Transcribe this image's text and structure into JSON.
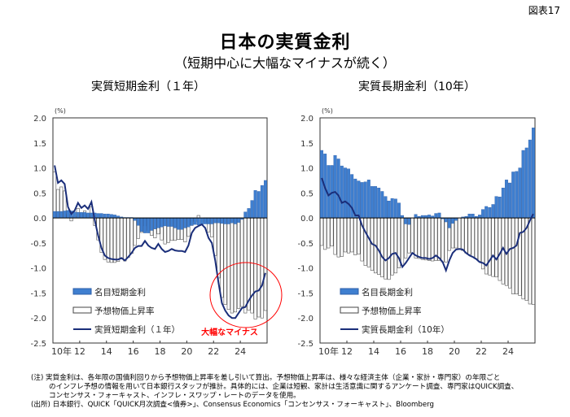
{
  "figure_number": "図表17",
  "title": "日本の実質金利",
  "subtitle": "（短期中心に大幅なマイナスが続く）",
  "colors": {
    "nominal": "#3f7fd0",
    "expected": "#ffffff",
    "real": "#1a2e7a",
    "annotation": "#ff0000"
  },
  "notes": [
    "(注) 実質金利は、各年限の国債利回りから予想物価上昇率を差し引いて算出。予想物価上昇率は、様々な経済主体（企業・家計・専門家）の年限ごと",
    "のインフレ予想の情報を用いて日本銀行スタッフが推計。具体的には、企業は短観、家計は生活意識に関するアンケート調査、専門家はQUICK調査、",
    "コンセンサス・フォーキャスト、インフレ・スワップ・レートのデータを使用。",
    "(出所) 日本銀行、QUICK「QUICK月次調査<債券>」、Consensus Economics「コンセンサス・フォーキャスト」、Bloomberg"
  ],
  "chart_data": [
    {
      "type": "bar+line",
      "title": "実質短期金利（１年）",
      "ylabel": "(%)",
      "ylim": [
        -2.5,
        2.0
      ],
      "yticks": [
        "2.0",
        "1.5",
        "1.0",
        "0.5",
        "0.0",
        "-0.5",
        "-1.0",
        "-1.5",
        "-2.0",
        "-2.5"
      ],
      "xlim": [
        2010,
        2026
      ],
      "xticks": [
        "10年",
        "12",
        "14",
        "16",
        "18",
        "20",
        "22",
        "24"
      ],
      "frequency": "quarterly",
      "x_start": "2010Q1",
      "grid": false,
      "legend_position": "bottom-left",
      "annotation": "大幅なマイナス",
      "series": [
        {
          "name": "名目短期金利",
          "kind": "bar",
          "values": [
            0.13,
            0.13,
            0.13,
            0.14,
            0.15,
            0.14,
            0.12,
            0.11,
            0.11,
            0.11,
            0.1,
            0.1,
            0.1,
            0.09,
            0.09,
            0.08,
            0.08,
            0.07,
            0.06,
            0.04,
            0.02,
            0.01,
            0.01,
            0.01,
            -0.05,
            -0.15,
            -0.27,
            -0.3,
            -0.3,
            -0.25,
            -0.22,
            -0.2,
            -0.18,
            -0.16,
            -0.17,
            -0.17,
            -0.2,
            -0.23,
            -0.23,
            -0.2,
            -0.18,
            -0.15,
            -0.13,
            -0.14,
            -0.13,
            -0.12,
            -0.12,
            -0.12,
            -0.1,
            -0.1,
            -0.11,
            -0.12,
            -0.12,
            -0.1,
            -0.12,
            -0.09,
            -0.03,
            0.12,
            0.19,
            0.35,
            0.55,
            0.53,
            0.65,
            0.75
          ]
        },
        {
          "name": "予想物価上昇率",
          "kind": "bar",
          "values": [
            0.92,
            0.57,
            0.62,
            0.54,
            0.07,
            -0.06,
            0.03,
            0.19,
            0.09,
            0.14,
            0.08,
            0.22,
            -0.15,
            -0.44,
            -0.69,
            -0.83,
            -0.88,
            -0.89,
            -0.89,
            -0.87,
            -0.82,
            -0.86,
            -0.79,
            -0.71,
            -0.55,
            -0.41,
            -0.29,
            -0.16,
            -0.25,
            -0.35,
            -0.4,
            -0.32,
            -0.44,
            -0.52,
            -0.49,
            -0.45,
            -0.45,
            -0.43,
            -0.43,
            -0.48,
            -0.37,
            -0.15,
            -0.07,
            0.05,
            0.0,
            -0.08,
            -0.28,
            -0.38,
            -0.75,
            -1.2,
            -1.59,
            -1.73,
            -1.83,
            -1.9,
            -1.88,
            -1.81,
            -1.77,
            -1.9,
            -1.84,
            -1.9,
            -2.02,
            -1.98,
            -2.0,
            -1.85
          ]
        },
        {
          "name": "実質短期金利（１年）",
          "kind": "line",
          "values": [
            1.05,
            0.7,
            0.75,
            0.68,
            0.22,
            0.08,
            0.15,
            0.3,
            0.2,
            0.25,
            0.18,
            0.32,
            -0.05,
            -0.35,
            -0.6,
            -0.75,
            -0.8,
            -0.82,
            -0.83,
            -0.83,
            -0.8,
            -0.85,
            -0.78,
            -0.7,
            -0.6,
            -0.56,
            -0.56,
            -0.46,
            -0.55,
            -0.6,
            -0.62,
            -0.52,
            -0.62,
            -0.68,
            -0.66,
            -0.62,
            -0.65,
            -0.66,
            -0.66,
            -0.68,
            -0.55,
            -0.3,
            -0.2,
            -0.16,
            -0.13,
            -0.2,
            -0.4,
            -0.5,
            -0.85,
            -1.3,
            -1.7,
            -1.85,
            -1.95,
            -2.0,
            -2.0,
            -1.9,
            -1.8,
            -1.78,
            -1.65,
            -1.55,
            -1.47,
            -1.45,
            -1.35,
            -1.1
          ]
        }
      ]
    },
    {
      "type": "bar+line",
      "title": "実質長期金利（10年）",
      "ylabel": "(%)",
      "ylim": [
        -2.5,
        2.0
      ],
      "yticks": [
        "2.0",
        "1.5",
        "1.0",
        "0.5",
        "0.0",
        "-0.5",
        "-1.0",
        "-1.5",
        "-2.0",
        "-2.5"
      ],
      "xlim": [
        2010,
        2026
      ],
      "xticks": [
        "10年",
        "12",
        "14",
        "16",
        "18",
        "20",
        "22",
        "24"
      ],
      "frequency": "quarterly",
      "x_start": "2010Q1",
      "grid": false,
      "legend_position": "bottom-left",
      "series": [
        {
          "name": "名目長期金利",
          "kind": "bar",
          "values": [
            1.35,
            1.28,
            1.05,
            1.05,
            1.25,
            1.18,
            1.04,
            1.0,
            0.98,
            0.87,
            0.78,
            0.74,
            0.71,
            0.72,
            0.76,
            0.63,
            0.63,
            0.6,
            0.53,
            0.43,
            0.34,
            0.39,
            0.38,
            0.3,
            0.05,
            -0.12,
            -0.13,
            0.0,
            0.07,
            0.03,
            0.05,
            0.05,
            0.06,
            0.04,
            0.09,
            0.1,
            -0.02,
            -0.08,
            -0.2,
            -0.11,
            -0.05,
            0.0,
            0.02,
            0.03,
            0.08,
            0.08,
            0.03,
            0.06,
            0.17,
            0.23,
            0.21,
            0.27,
            0.43,
            0.42,
            0.6,
            0.76,
            0.7,
            0.92,
            0.93,
            1.0,
            1.35,
            1.4,
            1.56,
            1.8
          ]
        },
        {
          "name": "予想物価上昇率",
          "kind": "bar",
          "values": [
            -0.55,
            -0.63,
            -0.6,
            -0.56,
            -0.73,
            -0.78,
            -0.77,
            -0.68,
            -0.7,
            -0.68,
            -0.74,
            -0.72,
            -0.86,
            -0.95,
            -0.98,
            -1.05,
            -1.1,
            -1.13,
            -1.18,
            -1.22,
            -1.23,
            -1.14,
            -1.1,
            -1.0,
            -0.95,
            -0.8,
            -0.7,
            -0.7,
            -0.8,
            -0.81,
            -0.83,
            -0.84,
            -0.85,
            -0.86,
            -0.85,
            -0.85,
            -0.88,
            -0.88,
            -0.65,
            -0.6,
            -0.6,
            -0.62,
            -0.65,
            -0.7,
            -0.73,
            -0.78,
            -0.82,
            -0.87,
            -1.02,
            -1.12,
            -1.14,
            -1.17,
            -1.18,
            -1.25,
            -1.32,
            -1.35,
            -1.4,
            -1.52,
            -1.52,
            -1.55,
            -1.62,
            -1.65,
            -1.72,
            -1.73
          ]
        },
        {
          "name": "実質長期金利（10年）",
          "kind": "line",
          "values": [
            0.8,
            0.6,
            0.45,
            0.5,
            0.52,
            0.45,
            0.3,
            0.33,
            0.28,
            0.2,
            0.05,
            0.05,
            -0.15,
            -0.28,
            -0.4,
            -0.52,
            -0.55,
            -0.65,
            -0.78,
            -0.85,
            -0.8,
            -0.72,
            -0.7,
            -0.8,
            -0.98,
            -0.9,
            -0.8,
            -0.7,
            -0.75,
            -0.78,
            -0.8,
            -0.8,
            -0.82,
            -0.8,
            -0.75,
            -0.8,
            -0.88,
            -1.05,
            -0.85,
            -0.7,
            -0.63,
            -0.62,
            -0.63,
            -0.7,
            -0.75,
            -0.78,
            -0.82,
            -0.88,
            -0.9,
            -0.95,
            -0.85,
            -0.75,
            -0.83,
            -0.72,
            -0.6,
            -0.72,
            -0.62,
            -0.6,
            -0.55,
            -0.3,
            -0.28,
            -0.2,
            -0.05,
            0.08
          ]
        }
      ]
    }
  ]
}
